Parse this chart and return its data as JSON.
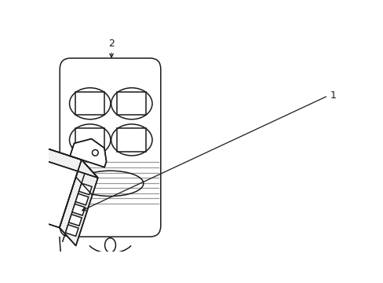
{
  "bg_color": "#ffffff",
  "line_color": "#1a1a1a",
  "gray_color": "#999999",
  "label1": "1",
  "label2": "2",
  "figsize": [
    4.89,
    3.6
  ],
  "dpi": 100
}
